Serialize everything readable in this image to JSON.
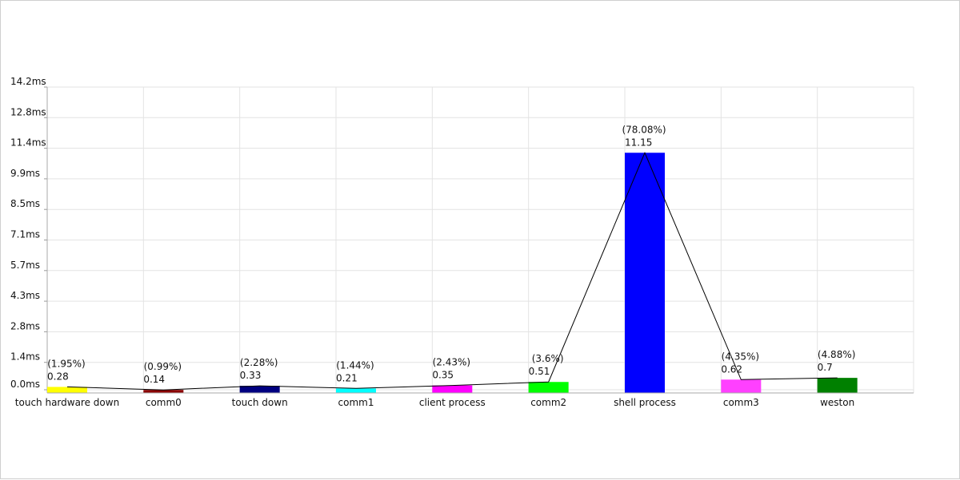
{
  "chart_data": {
    "type": "bar",
    "categories": [
      "touch hardware down",
      "comm0",
      "touch down",
      "comm1",
      "client process",
      "comm2",
      "shell process",
      "comm3",
      "weston"
    ],
    "values": [
      0.28,
      0.14,
      0.33,
      0.21,
      0.35,
      0.51,
      11.15,
      0.62,
      0.7
    ],
    "value_labels": [
      "0.28",
      "0.14",
      "0.33",
      "0.21",
      "0.35",
      "0.51",
      "11.15",
      "0.62",
      "0.7"
    ],
    "percent_labels": [
      "(1.95%)",
      "(0.99%)",
      "(2.28%)",
      "(1.44%)",
      "(2.43%)",
      "(3.6%)",
      "(78.08%)",
      "(4.35%)",
      "(4.88%)"
    ],
    "colors": [
      "#ffff00",
      "#8b0000",
      "#000080",
      "#00ffff",
      "#ff00ff",
      "#00ff00",
      "#0000ff",
      "#ff40ff",
      "#008000"
    ],
    "line_color": "#000000",
    "y_ticks": [
      "0.0ms",
      "1.4ms",
      "2.8ms",
      "4.3ms",
      "5.7ms",
      "7.1ms",
      "8.5ms",
      "9.9ms",
      "11.4ms",
      "12.8ms",
      "14.2ms"
    ],
    "ylim": [
      0,
      14.2
    ],
    "grid": true,
    "overlay": "line through bar tops"
  }
}
